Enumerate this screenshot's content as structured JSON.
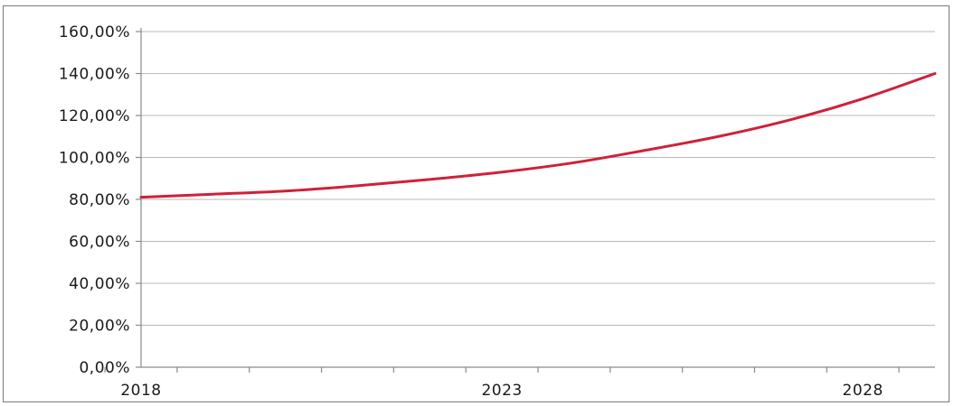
{
  "chart_data": {
    "type": "line",
    "title": "",
    "xlabel": "",
    "ylabel": "",
    "xlim": [
      2018,
      2029
    ],
    "ylim": [
      0,
      160
    ],
    "yticks": [
      0,
      20,
      40,
      60,
      80,
      100,
      120,
      140,
      160
    ],
    "ytick_labels": [
      "0,00%",
      "20,00%",
      "40,00%",
      "60,00%",
      "80,00%",
      "100,00%",
      "120,00%",
      "140,00%",
      "160,00%"
    ],
    "xticks": [
      2018,
      2023,
      2028
    ],
    "xtick_labels": [
      "2018",
      "2023",
      "2028"
    ],
    "grid": true,
    "legend": "none",
    "series": [
      {
        "color": "#d0203a",
        "x": [
          2018,
          2019,
          2020,
          2021,
          2022,
          2023,
          2024,
          2025,
          2026,
          2027,
          2028,
          2029
        ],
        "values": [
          81,
          82.5,
          84,
          86.5,
          89.5,
          93,
          97.5,
          103.5,
          110,
          118,
          128,
          140
        ]
      }
    ]
  }
}
